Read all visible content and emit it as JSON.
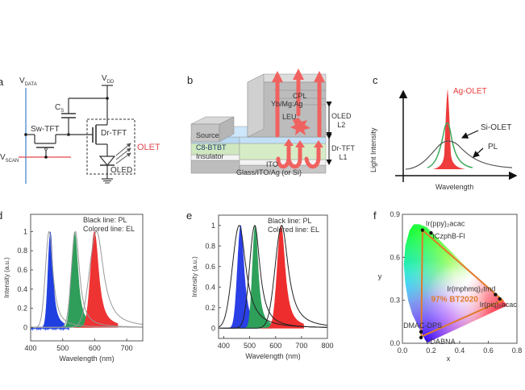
{
  "figure": {
    "panels": {
      "a": {
        "label": "a",
        "vdata": "V",
        "vdata_sub": "DATA",
        "vdd": "V",
        "vdd_sub": "DD",
        "vscan": "V",
        "vscan_sub": "SCAN",
        "cs": "C",
        "cs_sub": "S",
        "sw_tft": "Sw-TFT",
        "dr_tft": "Dr-TFT",
        "oled": "OLED",
        "olet": "OLET",
        "colors": {
          "vdata_line": "#6aa0d8",
          "vscan_line": "#e0474c",
          "olet_text": "#e0474c"
        }
      },
      "b": {
        "label": "b",
        "layers": [
          "CPL",
          "Yb/Mg:Ag",
          "LEU",
          "Source",
          "C8-BTBT",
          "Insulator",
          "ITO",
          "Glass/ITO/Ag (or Si)"
        ],
        "oled_bracket": [
          "OLED",
          "L2"
        ],
        "tft_bracket": [
          "Dr-TFT",
          "L1"
        ],
        "colors": {
          "arrows": "#f0625f",
          "c8btbt": "#bcdcf5",
          "insulator": "#d3ebc3",
          "grey": "#c9c9c9"
        }
      },
      "c": {
        "label": "c",
        "ylabel": "Light Intensity",
        "xlabel": "Wavelength",
        "ag_olet": "Ag-OLET",
        "si_olet": "Si-OLET",
        "pl": "PL",
        "colors": {
          "ag": "#ee3b3b",
          "si": "#3aaa5a",
          "pl": "#555555"
        }
      },
      "f": {
        "label": "f"
      }
    }
  },
  "chart_data": [
    {
      "panel": "d",
      "label": "d",
      "type": "area",
      "xlabel": "Wavelength (nm)",
      "ylabel": "Intensity (a.u.)",
      "xlim": [
        400,
        750
      ],
      "ylim": [
        -0.14,
        1.18
      ],
      "xticks": [
        400,
        500,
        600,
        700
      ],
      "yticks": [
        0,
        0.2,
        0.4,
        0.6,
        0.8,
        1
      ],
      "ytick_labels": [
        "0",
        "0.2",
        "0.4",
        "0.6",
        "0.8",
        "1"
      ],
      "legend": [
        "Black line: PL",
        "Colored line: EL"
      ],
      "legend_position": "top-right",
      "series": [
        {
          "name": "Blue EL",
          "kind": "EL",
          "color": "#1f3fe0",
          "peak": 462,
          "fwhm": 18
        },
        {
          "name": "Green EL",
          "kind": "EL",
          "color": "#2e9e5a",
          "peak": 538,
          "fwhm": 24
        },
        {
          "name": "Red EL",
          "kind": "EL",
          "color": "#ee3333",
          "peak": 600,
          "fwhm": 30
        },
        {
          "name": "Blue PL",
          "kind": "PL",
          "color": "#999999",
          "peak": 458,
          "fwhm": 28
        },
        {
          "name": "Green PL",
          "kind": "PL",
          "color": "#999999",
          "peak": 540,
          "fwhm": 30
        },
        {
          "name": "Red PL",
          "kind": "PL",
          "color": "#999999",
          "peak": 606,
          "fwhm": 52
        }
      ]
    },
    {
      "panel": "e",
      "label": "e",
      "type": "area",
      "xlabel": "Wavelength (nm)",
      "ylabel": "Intensity (a.u.)",
      "xlim": [
        380,
        800
      ],
      "ylim": [
        -0.1,
        1.1
      ],
      "xticks": [
        400,
        500,
        600,
        700,
        800
      ],
      "yticks": [
        0,
        0.2,
        0.4,
        0.6,
        0.8,
        1
      ],
      "ytick_labels": [
        "0",
        "0.2",
        "0.4",
        "0.6",
        "0.8",
        "1"
      ],
      "legend": [
        "Black line: PL",
        "Colored line: EL"
      ],
      "legend_position": "top-right",
      "series": [
        {
          "name": "Blue EL",
          "kind": "EL",
          "color": "#2a3fe6",
          "peak": 466,
          "fwhm": 30
        },
        {
          "name": "Green EL",
          "kind": "EL",
          "color": "#2ea05a",
          "peak": 522,
          "fwhm": 26
        },
        {
          "name": "Red EL",
          "kind": "EL",
          "color": "#ee2e2e",
          "peak": 622,
          "fwhm": 36
        },
        {
          "name": "Blue PL",
          "kind": "PL",
          "color": "#222222",
          "peak": 460,
          "fwhm": 62
        },
        {
          "name": "Green PL",
          "kind": "PL",
          "color": "#222222",
          "peak": 520,
          "fwhm": 48
        },
        {
          "name": "Red PL",
          "kind": "PL",
          "color": "#222222",
          "peak": 624,
          "fwhm": 60
        }
      ]
    },
    {
      "panel": "f",
      "label": "f",
      "type": "scatter",
      "title": "",
      "xlabel": "x",
      "ylabel": "y",
      "xlim": [
        0.0,
        0.8
      ],
      "ylim": [
        0.0,
        0.9
      ],
      "xticks": [
        0.0,
        0.2,
        0.4,
        0.6,
        0.8
      ],
      "xtick_labels": [
        "0.0",
        "0.2",
        "0.4",
        "0.6",
        "0.8"
      ],
      "yticks": [
        0.0,
        0.3,
        0.6,
        0.9
      ],
      "ytick_labels": [
        "0.0",
        "0.3",
        "0.6",
        "0.9"
      ],
      "annotation": "97% BT2020",
      "triangle_color": "#e07a2a",
      "points": [
        {
          "name": "Ir(ppy)2acac",
          "x": 0.14,
          "y": 0.79
        },
        {
          "name": "tCzphB-Fl",
          "x": 0.2,
          "y": 0.77
        },
        {
          "name": "Ir(mphmq)2tmd",
          "x": 0.65,
          "y": 0.34
        },
        {
          "name": "Ir(piq)2acac",
          "x": 0.68,
          "y": 0.31
        },
        {
          "name": "DMAC-DPS",
          "x": 0.13,
          "y": 0.08
        },
        {
          "name": "t-DABNA",
          "x": 0.13,
          "y": 0.04
        }
      ],
      "triangle": [
        [
          0.131,
          0.046
        ],
        [
          0.14,
          0.79
        ],
        [
          0.7,
          0.3
        ]
      ]
    }
  ]
}
